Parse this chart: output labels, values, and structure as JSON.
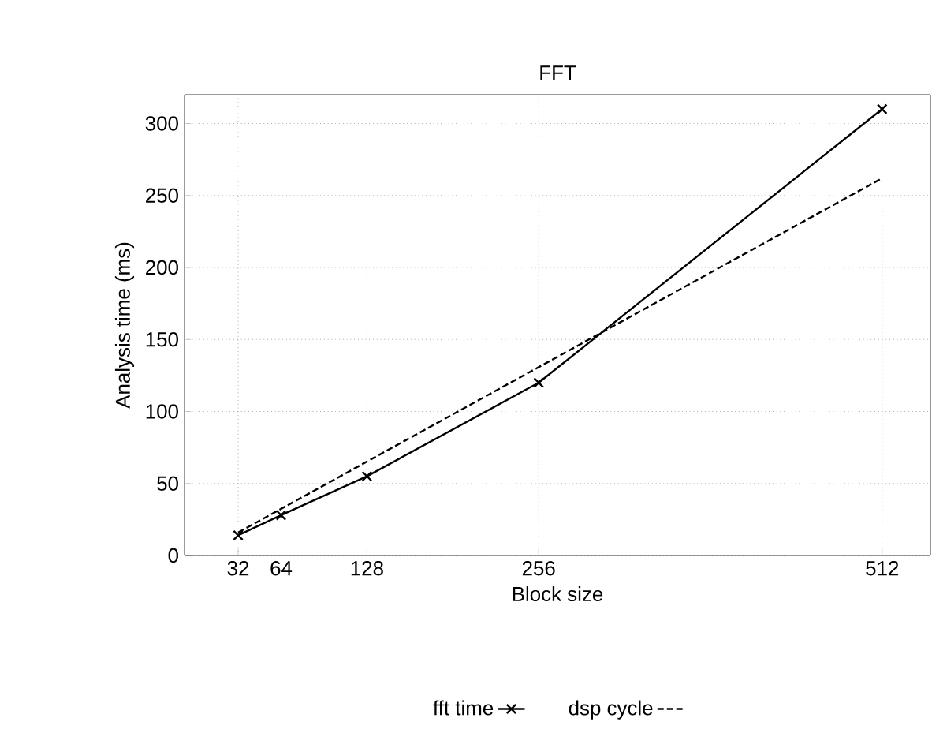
{
  "chart_data": {
    "type": "line",
    "title": "FFT",
    "xlabel": "Block size",
    "ylabel": "Analysis time (ms)",
    "x": [
      32,
      64,
      128,
      256,
      512
    ],
    "series": [
      {
        "name": "fft time",
        "color": "#000000",
        "marker": "cross",
        "line_style": "solid",
        "values": [
          14,
          28,
          55,
          120,
          310
        ]
      },
      {
        "name": "dsp cycle",
        "color": "#000000",
        "marker": "none",
        "line_style": "dashed",
        "x": [
          32,
          512
        ],
        "values": [
          16,
          262
        ]
      }
    ],
    "xlim": [
      -8,
      548
    ],
    "ylim": [
      0,
      320
    ],
    "xticks": [
      32,
      64,
      128,
      256,
      512
    ],
    "yticks": [
      0,
      50,
      100,
      150,
      200,
      250,
      300
    ],
    "grid": true,
    "legend": "bottom"
  }
}
